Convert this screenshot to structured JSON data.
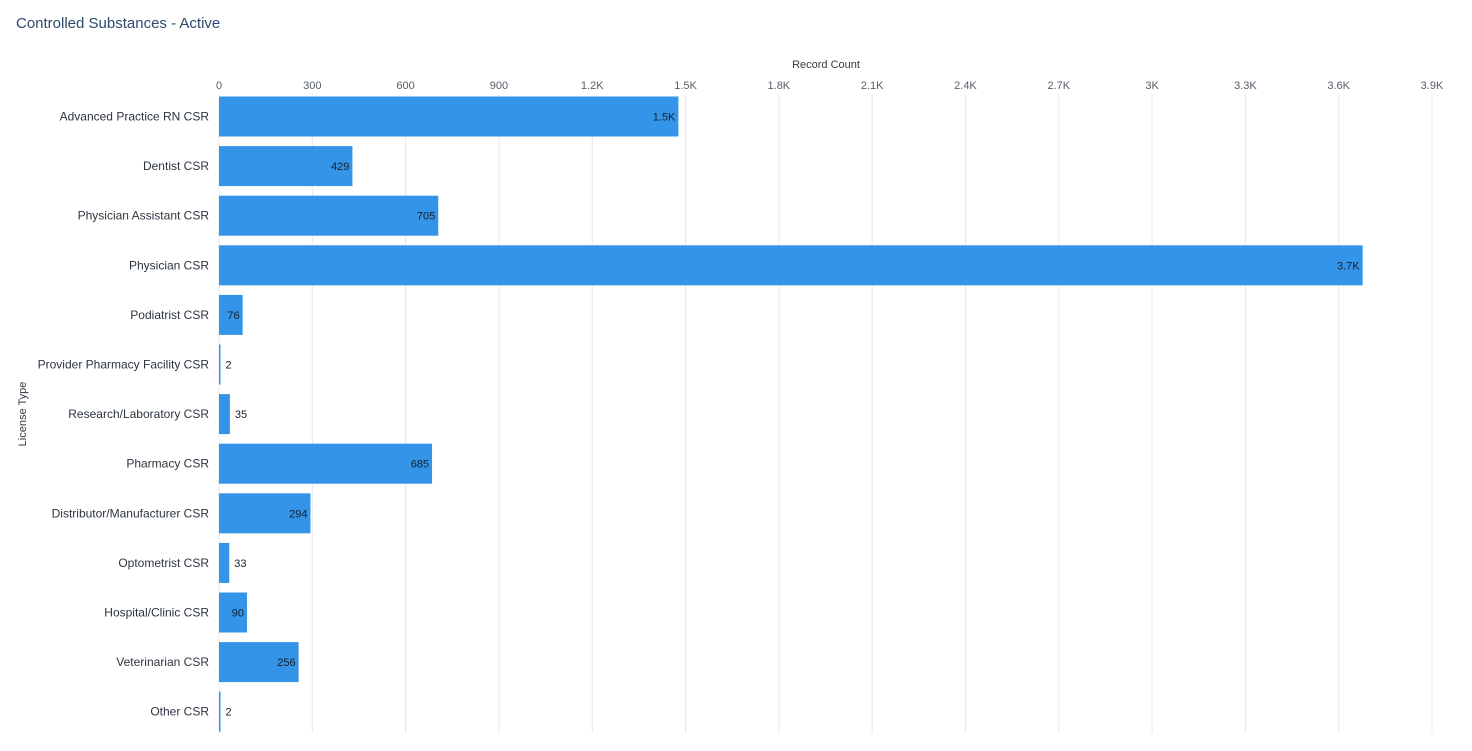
{
  "widget": {
    "title": "Controlled Substances - Active"
  },
  "colors": {
    "bar": "#3394e8",
    "grid": "#e6e8eb",
    "title": "#2b4a6f"
  },
  "chart_data": {
    "type": "bar",
    "orientation": "horizontal",
    "xlabel": "Record Count",
    "ylabel": "License Type",
    "xlim": [
      0,
      3900
    ],
    "x_ticks": [
      0,
      300,
      600,
      900,
      1200,
      1500,
      1800,
      2100,
      2400,
      2700,
      3000,
      3300,
      3600,
      3900
    ],
    "x_tick_labels": [
      "0",
      "300",
      "600",
      "900",
      "1.2K",
      "1.5K",
      "1.8K",
      "2.1K",
      "2.4K",
      "2.7K",
      "3K",
      "3.3K",
      "3.6K",
      "3.9K"
    ],
    "grid": true,
    "categories": [
      "Advanced Practice RN CSR",
      "Dentist CSR",
      "Physician Assistant CSR",
      "Physician CSR",
      "Podiatrist CSR",
      "Provider Pharmacy Facility CSR",
      "Research/Laboratory CSR",
      "Pharmacy CSR",
      "Distributor/Manufacturer CSR",
      "Optometrist CSR",
      "Hospital/Clinic CSR",
      "Veterinarian CSR",
      "Other CSR"
    ],
    "values": [
      1477,
      429,
      705,
      3677,
      76,
      2,
      35,
      685,
      294,
      33,
      90,
      256,
      2
    ],
    "data_labels": [
      "1.5K",
      "429",
      "705",
      "3.7K",
      "76",
      "2",
      "35",
      "685",
      "294",
      "33",
      "90",
      "256",
      "2"
    ]
  }
}
